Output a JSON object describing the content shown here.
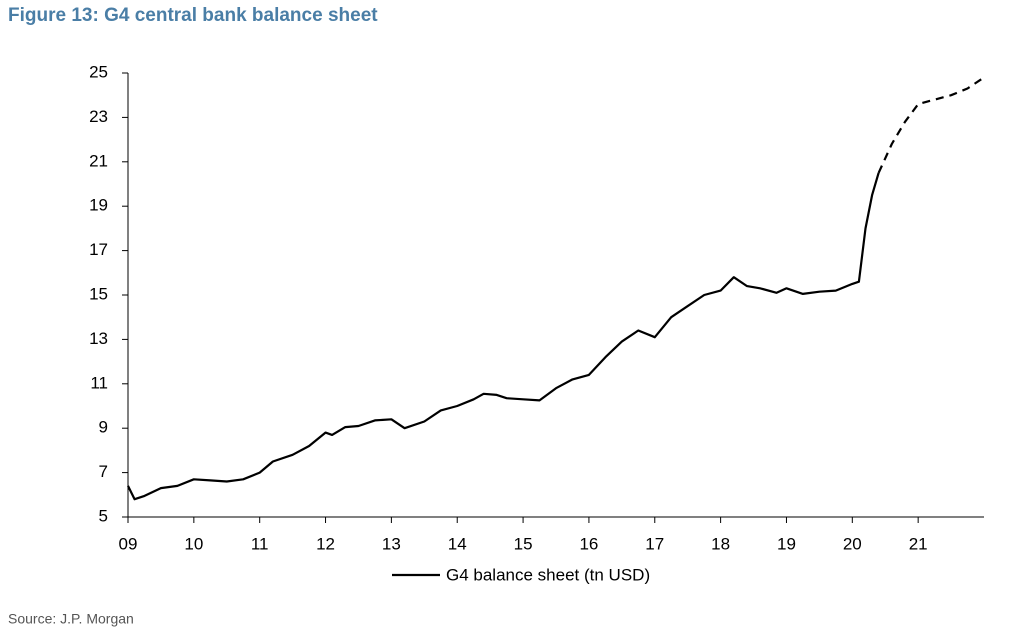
{
  "chart_data": {
    "type": "line",
    "title": "Figure 13: G4 central bank balance sheet",
    "source": "Source: J.P. Morgan",
    "xlim": [
      2009,
      2022
    ],
    "xticks": [
      {
        "value": 2009,
        "label": "09"
      },
      {
        "value": 2010,
        "label": "10"
      },
      {
        "value": 2011,
        "label": "11"
      },
      {
        "value": 2012,
        "label": "12"
      },
      {
        "value": 2013,
        "label": "13"
      },
      {
        "value": 2014,
        "label": "14"
      },
      {
        "value": 2015,
        "label": "15"
      },
      {
        "value": 2016,
        "label": "16"
      },
      {
        "value": 2017,
        "label": "17"
      },
      {
        "value": 2018,
        "label": "18"
      },
      {
        "value": 2019,
        "label": "19"
      },
      {
        "value": 2020,
        "label": "20"
      },
      {
        "value": 2021,
        "label": "21"
      }
    ],
    "ylim": [
      5,
      25
    ],
    "yticks": [
      5,
      7,
      9,
      11,
      13,
      15,
      17,
      19,
      21,
      23,
      25
    ],
    "series": [
      {
        "name": "G4 balance sheet (tn USD)",
        "color": "#000000",
        "x": [
          2009.0,
          2009.1,
          2009.25,
          2009.5,
          2009.75,
          2010.0,
          2010.25,
          2010.5,
          2010.75,
          2011.0,
          2011.2,
          2011.5,
          2011.75,
          2012.0,
          2012.1,
          2012.3,
          2012.5,
          2012.75,
          2013.0,
          2013.2,
          2013.5,
          2013.75,
          2014.0,
          2014.25,
          2014.4,
          2014.6,
          2014.75,
          2015.0,
          2015.25,
          2015.5,
          2015.75,
          2016.0,
          2016.25,
          2016.5,
          2016.75,
          2017.0,
          2017.25,
          2017.5,
          2017.75,
          2018.0,
          2018.2,
          2018.4,
          2018.6,
          2018.85,
          2019.0,
          2019.25,
          2019.5,
          2019.75,
          2020.0,
          2020.1,
          2020.2,
          2020.3,
          2020.4
        ],
        "values": [
          6.4,
          5.8,
          5.95,
          6.3,
          6.4,
          6.7,
          6.65,
          6.6,
          6.7,
          7.0,
          7.5,
          7.8,
          8.2,
          8.8,
          8.7,
          9.05,
          9.1,
          9.35,
          9.4,
          9.0,
          9.3,
          9.8,
          10.0,
          10.3,
          10.55,
          10.5,
          10.35,
          10.3,
          10.25,
          10.8,
          11.2,
          11.4,
          12.2,
          12.9,
          13.4,
          13.1,
          14.0,
          14.5,
          15.0,
          15.2,
          15.8,
          15.4,
          15.3,
          15.1,
          15.3,
          15.05,
          15.15,
          15.2,
          15.5,
          15.6,
          18.0,
          19.5,
          20.5
        ]
      },
      {
        "color": "#000000",
        "dashed": true,
        "x": [
          2020.4,
          2020.6,
          2020.8,
          2021.0,
          2021.25,
          2021.5,
          2021.75,
          2022.0
        ],
        "values": [
          20.5,
          21.8,
          22.8,
          23.6,
          23.8,
          24.0,
          24.3,
          24.8
        ]
      }
    ]
  }
}
